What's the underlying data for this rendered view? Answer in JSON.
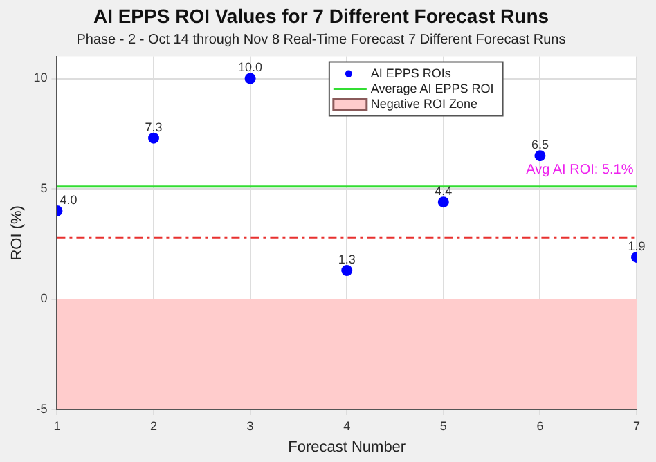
{
  "chart_data": {
    "type": "scatter",
    "title": "AI EPPS ROI Values for 7 Different Forecast Runs",
    "subtitle": "Phase - 2 - Oct 14 through Nov 8 Real-Time Forecast 7 Different Forecast Runs",
    "xlabel": "Forecast Number",
    "ylabel": "ROI (%)",
    "x": [
      1,
      2,
      3,
      4,
      5,
      6,
      7
    ],
    "series": [
      {
        "name": "AI EPPS ROIs",
        "color": "#0000ff",
        "values": [
          4.0,
          7.3,
          10.0,
          1.3,
          4.4,
          6.5,
          1.9
        ],
        "value_labels": [
          "4.0",
          "7.3",
          "10.0",
          "1.3",
          "4.4",
          "6.5",
          "1.9"
        ]
      }
    ],
    "xlim": [
      1,
      7
    ],
    "xticks": [
      1,
      2,
      3,
      4,
      5,
      6,
      7
    ],
    "ylim": [
      -5,
      11
    ],
    "yticks": [
      -5,
      0,
      5,
      10
    ],
    "ref_lines": [
      {
        "axis": "y",
        "value": 2.8,
        "color": "#e8312f",
        "line_style": "dashed"
      },
      {
        "axis": "y",
        "value": 5.1,
        "label": "Average AI EPPS ROI",
        "color": "#33dd33",
        "line_style": "solid"
      }
    ],
    "bands": [
      {
        "axis": "y",
        "from": -5,
        "to": 0,
        "label": "Negative ROI Zone",
        "color": "#ffcccc"
      }
    ],
    "annotations": [
      {
        "text": "Avg AI ROI: 5.1%",
        "x": 6.6,
        "y": 5.1
      }
    ],
    "grid": true,
    "legend": "top",
    "marker": "circle"
  }
}
